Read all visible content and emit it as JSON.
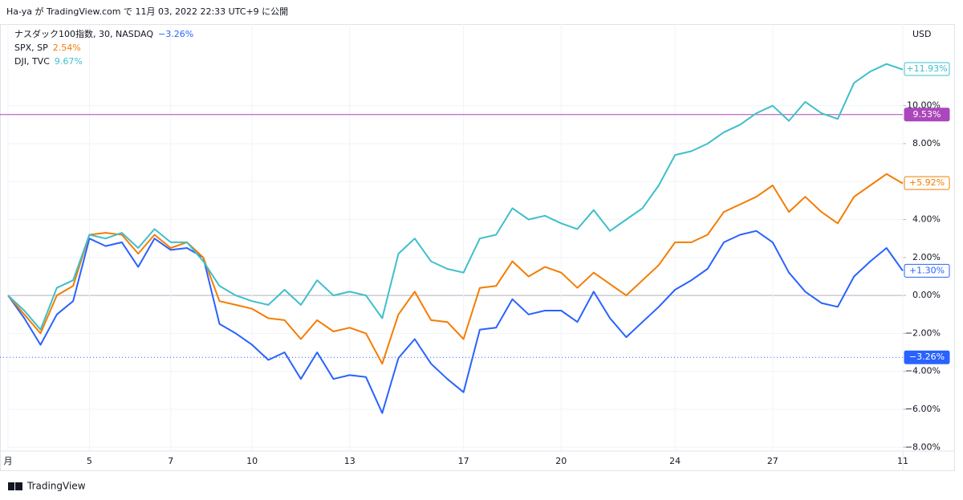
{
  "header": "Ha-ya が TradingView.com で 11月 03, 2022 22:33 UTC+9 に公開",
  "footer": "TradingView",
  "chart_data": {
    "type": "line",
    "currency": "USD",
    "grid": true,
    "categories": [
      "月",
      null,
      null,
      null,
      null,
      "5",
      null,
      null,
      null,
      null,
      "7",
      null,
      null,
      null,
      null,
      "10",
      null,
      null,
      null,
      null,
      null,
      "13",
      null,
      null,
      null,
      null,
      null,
      null,
      "17",
      null,
      null,
      null,
      null,
      null,
      "20",
      null,
      null,
      null,
      null,
      null,
      null,
      "24",
      null,
      null,
      null,
      null,
      null,
      "27",
      null,
      null,
      null,
      null,
      null,
      null,
      null,
      "11"
    ],
    "ylim": [
      -8.2,
      14.3
    ],
    "yticks": [
      {
        "value": -8,
        "label": "−8.00%"
      },
      {
        "value": -6,
        "label": "−6.00%"
      },
      {
        "value": -4,
        "label": "−4.00%"
      },
      {
        "value": -2,
        "label": "−2.00%"
      },
      {
        "value": 0,
        "label": "0.00%"
      },
      {
        "value": 2,
        "label": "2.00%"
      },
      {
        "value": 4,
        "label": "4.00%"
      },
      {
        "value": 6,
        "label": "6.00%"
      },
      {
        "value": 8,
        "label": "8.00%"
      },
      {
        "value": 10,
        "label": "10.00%"
      }
    ],
    "hlines": [
      {
        "value": 9.53,
        "label": "9.53%",
        "color": "#ab47bc",
        "style": "solid"
      },
      {
        "value": -3.26,
        "label": "−3.26%",
        "color": "#2962ff",
        "style": "dotted"
      }
    ],
    "series": [
      {
        "name": "ナスダック100指数, 30, NASDAQ",
        "change": "−3.26%",
        "color": "#2962ff",
        "last": {
          "value": 1.3,
          "label": "+1.30%"
        },
        "values": [
          0,
          -1.2,
          -2.6,
          -1.0,
          -0.3,
          3.0,
          2.6,
          2.8,
          1.5,
          3.0,
          2.4,
          2.5,
          2.0,
          -1.5,
          -2.0,
          -2.6,
          -3.4,
          -3.0,
          -4.4,
          -3.0,
          -4.4,
          -4.2,
          -4.3,
          -6.2,
          -3.3,
          -2.3,
          -3.6,
          -4.4,
          -5.1,
          -1.8,
          -1.7,
          -0.2,
          -1.0,
          -0.8,
          -0.8,
          -1.4,
          0.2,
          -1.2,
          -2.2,
          -1.4,
          -0.6,
          0.3,
          0.8,
          1.4,
          2.8,
          3.2,
          3.4,
          2.8,
          1.2,
          0.2,
          -0.4,
          -0.6,
          1.0,
          1.8,
          2.5,
          1.3
        ]
      },
      {
        "name": "SPX, SP",
        "change": "2.54%",
        "color": "#f57c00",
        "last": {
          "value": 5.92,
          "label": "+5.92%"
        },
        "values": [
          0,
          -1.0,
          -2.0,
          0,
          0.5,
          3.2,
          3.3,
          3.2,
          2.2,
          3.2,
          2.5,
          2.8,
          2.0,
          -0.3,
          -0.5,
          -0.7,
          -1.2,
          -1.3,
          -2.3,
          -1.3,
          -1.9,
          -1.7,
          -2.0,
          -3.6,
          -1.0,
          0.2,
          -1.3,
          -1.4,
          -2.3,
          0.4,
          0.5,
          1.8,
          1.0,
          1.5,
          1.2,
          0.4,
          1.2,
          0.6,
          0.0,
          0.8,
          1.6,
          2.8,
          2.8,
          3.2,
          4.4,
          4.8,
          5.2,
          5.8,
          4.4,
          5.2,
          4.4,
          3.8,
          5.2,
          5.8,
          6.4,
          5.9
        ]
      },
      {
        "name": "DJI, TVC",
        "change": "9.67%",
        "color": "#3fbfcb",
        "last": {
          "value": 11.93,
          "label": "+11.93%"
        },
        "values": [
          0,
          -0.8,
          -1.8,
          0.4,
          0.8,
          3.2,
          3.0,
          3.3,
          2.5,
          3.5,
          2.8,
          2.8,
          1.8,
          0.5,
          0.0,
          -0.3,
          -0.5,
          0.3,
          -0.5,
          0.8,
          0.0,
          0.2,
          0.0,
          -1.2,
          2.2,
          3.0,
          1.8,
          1.4,
          1.2,
          3.0,
          3.2,
          4.6,
          4.0,
          4.2,
          3.8,
          3.5,
          4.5,
          3.4,
          4.0,
          4.6,
          5.8,
          7.4,
          7.6,
          8.0,
          8.6,
          9.0,
          9.6,
          10.0,
          9.2,
          10.2,
          9.6,
          9.3,
          11.2,
          11.8,
          12.2,
          11.9
        ]
      }
    ]
  }
}
